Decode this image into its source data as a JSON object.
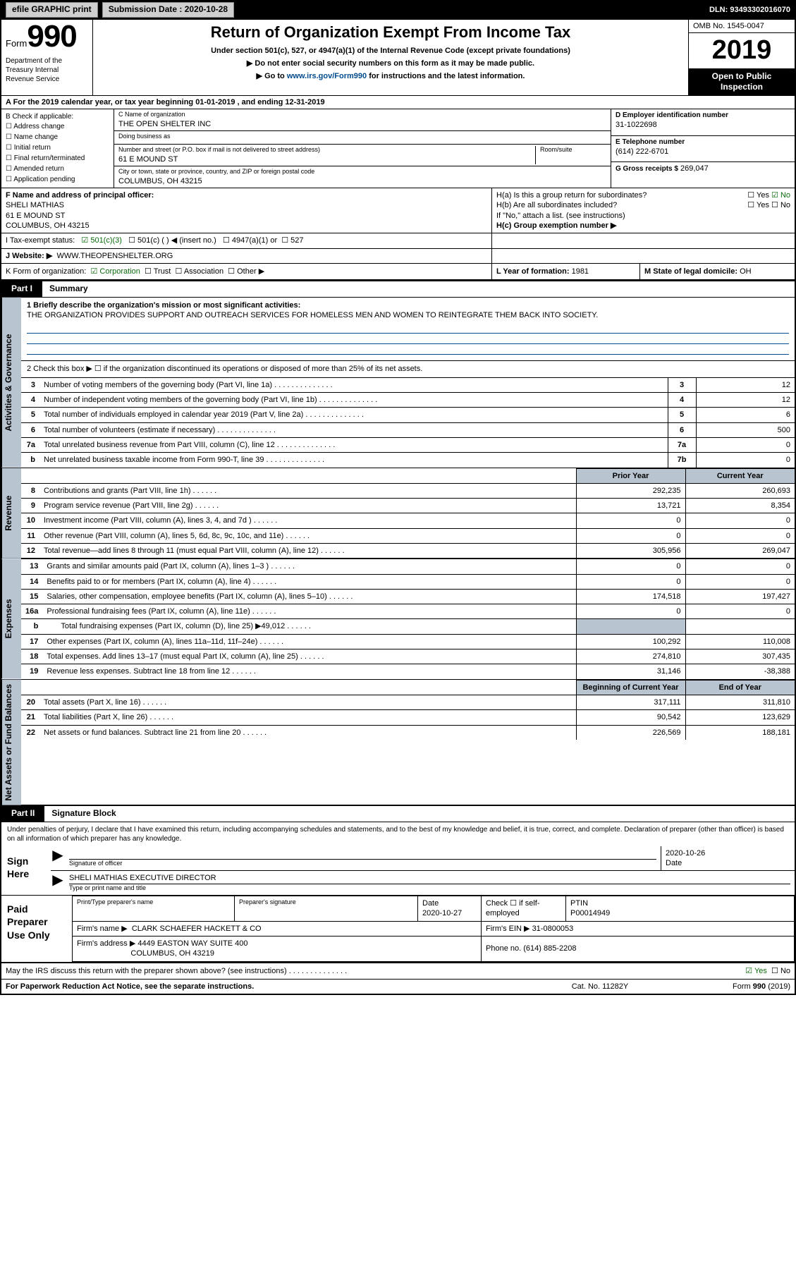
{
  "colors": {
    "header_bg": "#000000",
    "header_fg": "#ffffff",
    "shade": "#b9c4d1",
    "link": "#004b8d",
    "check_green": "#0b6b0b",
    "border": "#000000",
    "background": "#ffffff"
  },
  "typography": {
    "base_font": "Arial, Helvetica, sans-serif",
    "base_size_pt": 8,
    "form_number_size_pt": 33,
    "year_size_pt": 28,
    "title_size_pt": 16
  },
  "topbar": {
    "efile": "efile GRAPHIC print",
    "sub_label": "Submission Date : 2020-10-28",
    "dln": "DLN: 93493302016070"
  },
  "header": {
    "form_word": "Form",
    "form_number": "990",
    "dept": "Department of the Treasury\nInternal Revenue Service",
    "title": "Return of Organization Exempt From Income Tax",
    "sub": "Under section 501(c), 527, or 4947(a)(1) of the Internal Revenue Code (except private foundations)",
    "sub2": "Do not enter social security numbers on this form as it may be made public.",
    "sub3_pre": "Go to ",
    "sub3_link": "www.irs.gov/Form990",
    "sub3_post": " for instructions and the latest information.",
    "omb": "OMB No. 1545-0047",
    "year": "2019",
    "open": "Open to Public Inspection"
  },
  "line_a": "A   For the 2019 calendar year, or tax year beginning 01-01-2019    , and ending 12-31-2019",
  "col_b": {
    "lead": "B Check if applicable:",
    "items": [
      "Address change",
      "Name change",
      "Initial return",
      "Final return/terminated",
      "Amended return",
      "Application pending"
    ]
  },
  "col_c": {
    "name_lbl": "C Name of organization",
    "name": "THE OPEN SHELTER INC",
    "dba_lbl": "Doing business as",
    "dba": "",
    "addr_lbl": "Number and street (or P.O. box if mail is not delivered to street address)",
    "room_lbl": "Room/suite",
    "addr": "61 E MOUND ST",
    "city_lbl": "City or town, state or province, country, and ZIP or foreign postal code",
    "city": "COLUMBUS, OH  43215"
  },
  "col_de": {
    "d_lbl": "D Employer identification number",
    "d": "31-1022698",
    "e_lbl": "E Telephone number",
    "e": "(614) 222-6701",
    "g_lbl": "G Gross receipts $",
    "g": "269,047"
  },
  "f": {
    "lbl": "F  Name and address of principal officer:",
    "name": "SHELI MATHIAS",
    "addr1": "61 E MOUND ST",
    "addr2": "COLUMBUS, OH  43215"
  },
  "h": {
    "a": "H(a)  Is this a group return for subordinates?",
    "a_yes": "Yes",
    "a_no": "No",
    "b": "H(b)  Are all subordinates included?",
    "b_yes": "Yes",
    "b_no": "No",
    "b_note": "If \"No,\" attach a list. (see instructions)",
    "c": "H(c)  Group exemption number ▶"
  },
  "i": {
    "lbl": "I   Tax-exempt status:",
    "o1": "501(c)(3)",
    "o2": "501(c) (   ) ◀ (insert no.)",
    "o3": "4947(a)(1) or",
    "o4": "527"
  },
  "j": {
    "lbl": "J   Website: ▶",
    "val": "WWW.THEOPENSHELTER.ORG"
  },
  "k": {
    "lbl": "K Form of organization:",
    "o1": "Corporation",
    "o2": "Trust",
    "o3": "Association",
    "o4": "Other ▶"
  },
  "l": {
    "lbl": "L Year of formation:",
    "val": "1981"
  },
  "m": {
    "lbl": "M State of legal domicile:",
    "val": "OH"
  },
  "parts": {
    "p1_tab": "Part I",
    "p1_title": "Summary",
    "p2_tab": "Part II",
    "p2_title": "Signature Block"
  },
  "vlabels": {
    "v1": "Activities & Governance",
    "v2": "Revenue",
    "v3": "Expenses",
    "v4": "Net Assets or Fund Balances"
  },
  "summary": {
    "l1_lbl": "1   Briefly describe the organization's mission or most significant activities:",
    "l1_text": "THE ORGANIZATION PROVIDES SUPPORT AND OUTREACH SERVICES FOR HOMELESS MEN AND WOMEN TO REINTEGRATE THEM BACK INTO SOCIETY.",
    "l2": "2   Check this box ▶ ☐  if the organization discontinued its operations or disposed of more than 25% of its net assets."
  },
  "gov_rows": [
    {
      "n": "3",
      "t": "Number of voting members of the governing body (Part VI, line 1a)",
      "box": "3",
      "v": "12"
    },
    {
      "n": "4",
      "t": "Number of independent voting members of the governing body (Part VI, line 1b)",
      "box": "4",
      "v": "12"
    },
    {
      "n": "5",
      "t": "Total number of individuals employed in calendar year 2019 (Part V, line 2a)",
      "box": "5",
      "v": "6"
    },
    {
      "n": "6",
      "t": "Total number of volunteers (estimate if necessary)",
      "box": "6",
      "v": "500"
    },
    {
      "n": "7a",
      "t": "Total unrelated business revenue from Part VIII, column (C), line 12",
      "box": "7a",
      "v": "0"
    },
    {
      "n": "b",
      "t": "Net unrelated business taxable income from Form 990-T, line 39",
      "box": "7b",
      "v": "0"
    }
  ],
  "fin_header": {
    "py": "Prior Year",
    "cy": "Current Year"
  },
  "rev_rows": [
    {
      "n": "8",
      "t": "Contributions and grants (Part VIII, line 1h)",
      "py": "292,235",
      "cy": "260,693"
    },
    {
      "n": "9",
      "t": "Program service revenue (Part VIII, line 2g)",
      "py": "13,721",
      "cy": "8,354"
    },
    {
      "n": "10",
      "t": "Investment income (Part VIII, column (A), lines 3, 4, and 7d )",
      "py": "0",
      "cy": "0"
    },
    {
      "n": "11",
      "t": "Other revenue (Part VIII, column (A), lines 5, 6d, 8c, 9c, 10c, and 11e)",
      "py": "0",
      "cy": "0"
    },
    {
      "n": "12",
      "t": "Total revenue—add lines 8 through 11 (must equal Part VIII, column (A), line 12)",
      "py": "305,956",
      "cy": "269,047"
    }
  ],
  "exp_rows": [
    {
      "n": "13",
      "t": "Grants and similar amounts paid (Part IX, column (A), lines 1–3 )",
      "py": "0",
      "cy": "0"
    },
    {
      "n": "14",
      "t": "Benefits paid to or for members (Part IX, column (A), line 4)",
      "py": "0",
      "cy": "0"
    },
    {
      "n": "15",
      "t": "Salaries, other compensation, employee benefits (Part IX, column (A), lines 5–10)",
      "py": "174,518",
      "cy": "197,427"
    },
    {
      "n": "16a",
      "t": "Professional fundraising fees (Part IX, column (A), line 11e)",
      "py": "0",
      "cy": "0"
    },
    {
      "n": "b",
      "t": "Total fundraising expenses (Part IX, column (D), line 25) ▶49,012",
      "py": "",
      "cy": "",
      "shade": true,
      "ind": true
    },
    {
      "n": "17",
      "t": "Other expenses (Part IX, column (A), lines 11a–11d, 11f–24e)",
      "py": "100,292",
      "cy": "110,008"
    },
    {
      "n": "18",
      "t": "Total expenses. Add lines 13–17 (must equal Part IX, column (A), line 25)",
      "py": "274,810",
      "cy": "307,435"
    },
    {
      "n": "19",
      "t": "Revenue less expenses. Subtract line 18 from line 12",
      "py": "31,146",
      "cy": "-38,388"
    }
  ],
  "na_header": {
    "py": "Beginning of Current Year",
    "cy": "End of Year"
  },
  "na_rows": [
    {
      "n": "20",
      "t": "Total assets (Part X, line 16)",
      "py": "317,111",
      "cy": "311,810"
    },
    {
      "n": "21",
      "t": "Total liabilities (Part X, line 26)",
      "py": "90,542",
      "cy": "123,629"
    },
    {
      "n": "22",
      "t": "Net assets or fund balances. Subtract line 21 from line 20",
      "py": "226,569",
      "cy": "188,181"
    }
  ],
  "perjury": "Under penalties of perjury, I declare that I have examined this return, including accompanying schedules and statements, and to the best of my knowledge and belief, it is true, correct, and complete. Declaration of preparer (other than officer) is based on all information of which preparer has any knowledge.",
  "sign": {
    "left": "Sign Here",
    "sig_lbl": "Signature of officer",
    "date_lbl": "Date",
    "date": "2020-10-26",
    "name": "SHELI MATHIAS  EXECUTIVE DIRECTOR",
    "name_lbl": "Type or print name and title"
  },
  "prep": {
    "left": "Paid Preparer Use Only",
    "c1": "Print/Type preparer's name",
    "c2": "Preparer's signature",
    "c3_lbl": "Date",
    "c3": "2020-10-27",
    "c4": "Check ☐ if self-employed",
    "c5_lbl": "PTIN",
    "c5": "P00014949",
    "firm_lbl": "Firm's name    ▶",
    "firm": "CLARK SCHAEFER HACKETT & CO",
    "ein_lbl": "Firm's EIN ▶",
    "ein": "31-0800053",
    "addr_lbl": "Firm's address ▶",
    "addr1": "4449 EASTON WAY SUITE 400",
    "addr2": "COLUMBUS, OH  43219",
    "phone_lbl": "Phone no.",
    "phone": "(614) 885-2208"
  },
  "discuss": {
    "q": "May the IRS discuss this return with the preparer shown above? (see instructions)",
    "yes": "Yes",
    "no": "No"
  },
  "footer": {
    "l": "For Paperwork Reduction Act Notice, see the separate instructions.",
    "m": "Cat. No. 11282Y",
    "r_pre": "Form ",
    "r_b": "990",
    "r_post": " (2019)"
  }
}
